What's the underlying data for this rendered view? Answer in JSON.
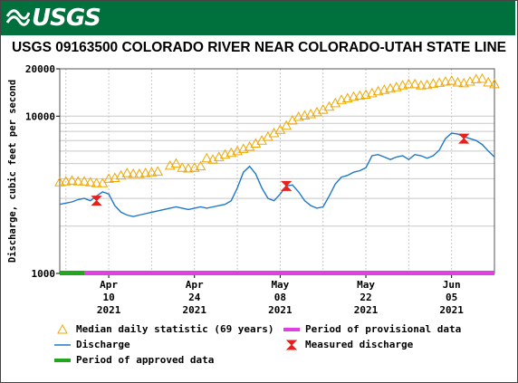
{
  "header": {
    "logo_text": "USGS",
    "brand_color": "#00703c"
  },
  "chart_data": {
    "type": "line",
    "title": "USGS 09163500 COLORADO RIVER NEAR COLORADO-UTAH STATE LINE",
    "ylabel": "Discharge, cubic feet per second",
    "yscale": "log",
    "ylim": [
      1000,
      20000
    ],
    "y_ticks": [
      {
        "value": 1000,
        "label": "1000"
      },
      {
        "value": 10000,
        "label": "10000"
      },
      {
        "value": 20000,
        "label": "20000"
      }
    ],
    "xlim": [
      "2021-04-02",
      "2021-06-12"
    ],
    "x_ticks": [
      {
        "date": "2021-04-10",
        "line1": "Apr",
        "line2": "10",
        "line3": "2021"
      },
      {
        "date": "2021-04-24",
        "line1": "Apr",
        "line2": "24",
        "line3": "2021"
      },
      {
        "date": "2021-05-08",
        "line1": "May",
        "line2": "08",
        "line3": "2021"
      },
      {
        "date": "2021-05-22",
        "line1": "May",
        "line2": "22",
        "line3": "2021"
      },
      {
        "date": "2021-06-05",
        "line1": "Jun",
        "line2": "05",
        "line3": "2021"
      }
    ],
    "grid": true,
    "legend_position": "bottom",
    "series": [
      {
        "name": "Median daily statistic (69 years)",
        "kind": "triangle-markers",
        "color": "#f0a800",
        "points": [
          {
            "x": "2021-04-02",
            "y": 3800
          },
          {
            "x": "2021-04-03",
            "y": 3850
          },
          {
            "x": "2021-04-04",
            "y": 3900
          },
          {
            "x": "2021-04-05",
            "y": 3850
          },
          {
            "x": "2021-04-06",
            "y": 3850
          },
          {
            "x": "2021-04-07",
            "y": 3800
          },
          {
            "x": "2021-04-08",
            "y": 3750
          },
          {
            "x": "2021-04-09",
            "y": 3750
          },
          {
            "x": "2021-04-10",
            "y": 4000
          },
          {
            "x": "2021-04-11",
            "y": 4050
          },
          {
            "x": "2021-04-12",
            "y": 4200
          },
          {
            "x": "2021-04-13",
            "y": 4350
          },
          {
            "x": "2021-04-14",
            "y": 4300
          },
          {
            "x": "2021-04-15",
            "y": 4300
          },
          {
            "x": "2021-04-16",
            "y": 4350
          },
          {
            "x": "2021-04-17",
            "y": 4400
          },
          {
            "x": "2021-04-18",
            "y": 4450
          },
          {
            "x": "2021-04-20",
            "y": 4850
          },
          {
            "x": "2021-04-21",
            "y": 5000
          },
          {
            "x": "2021-04-22",
            "y": 4700
          },
          {
            "x": "2021-04-23",
            "y": 4650
          },
          {
            "x": "2021-04-24",
            "y": 4700
          },
          {
            "x": "2021-04-25",
            "y": 4800
          },
          {
            "x": "2021-04-26",
            "y": 5400
          },
          {
            "x": "2021-04-27",
            "y": 5300
          },
          {
            "x": "2021-04-28",
            "y": 5500
          },
          {
            "x": "2021-04-29",
            "y": 5700
          },
          {
            "x": "2021-04-30",
            "y": 5850
          },
          {
            "x": "2021-05-01",
            "y": 6000
          },
          {
            "x": "2021-05-02",
            "y": 6200
          },
          {
            "x": "2021-05-03",
            "y": 6400
          },
          {
            "x": "2021-05-04",
            "y": 6700
          },
          {
            "x": "2021-05-05",
            "y": 7000
          },
          {
            "x": "2021-05-06",
            "y": 7400
          },
          {
            "x": "2021-05-07",
            "y": 7800
          },
          {
            "x": "2021-05-08",
            "y": 8200
          },
          {
            "x": "2021-05-09",
            "y": 8700
          },
          {
            "x": "2021-05-10",
            "y": 9400
          },
          {
            "x": "2021-05-11",
            "y": 9900
          },
          {
            "x": "2021-05-12",
            "y": 10100
          },
          {
            "x": "2021-05-13",
            "y": 10300
          },
          {
            "x": "2021-05-14",
            "y": 10600
          },
          {
            "x": "2021-05-15",
            "y": 11000
          },
          {
            "x": "2021-05-16",
            "y": 11500
          },
          {
            "x": "2021-05-17",
            "y": 12100
          },
          {
            "x": "2021-05-18",
            "y": 12700
          },
          {
            "x": "2021-05-19",
            "y": 13000
          },
          {
            "x": "2021-05-20",
            "y": 13300
          },
          {
            "x": "2021-05-21",
            "y": 13500
          },
          {
            "x": "2021-05-22",
            "y": 13700
          },
          {
            "x": "2021-05-23",
            "y": 14000
          },
          {
            "x": "2021-05-24",
            "y": 14400
          },
          {
            "x": "2021-05-25",
            "y": 14700
          },
          {
            "x": "2021-05-26",
            "y": 15000
          },
          {
            "x": "2021-05-27",
            "y": 15300
          },
          {
            "x": "2021-05-28",
            "y": 15700
          },
          {
            "x": "2021-05-29",
            "y": 16000
          },
          {
            "x": "2021-05-30",
            "y": 16000
          },
          {
            "x": "2021-05-31",
            "y": 15700
          },
          {
            "x": "2021-06-01",
            "y": 15800
          },
          {
            "x": "2021-06-02",
            "y": 16100
          },
          {
            "x": "2021-06-03",
            "y": 16300
          },
          {
            "x": "2021-06-04",
            "y": 16600
          },
          {
            "x": "2021-06-05",
            "y": 16800
          },
          {
            "x": "2021-06-06",
            "y": 16400
          },
          {
            "x": "2021-06-07",
            "y": 16200
          },
          {
            "x": "2021-06-08",
            "y": 16600
          },
          {
            "x": "2021-06-09",
            "y": 17200
          },
          {
            "x": "2021-06-10",
            "y": 17300
          },
          {
            "x": "2021-06-11",
            "y": 16400
          },
          {
            "x": "2021-06-12",
            "y": 16000
          }
        ]
      },
      {
        "name": "Discharge",
        "kind": "line",
        "color": "#1f78c8",
        "points": [
          {
            "x": "2021-04-02",
            "y": 2750
          },
          {
            "x": "2021-04-03",
            "y": 2800
          },
          {
            "x": "2021-04-04",
            "y": 2850
          },
          {
            "x": "2021-04-05",
            "y": 2950
          },
          {
            "x": "2021-04-06",
            "y": 3000
          },
          {
            "x": "2021-04-07",
            "y": 2900
          },
          {
            "x": "2021-04-08",
            "y": 3100
          },
          {
            "x": "2021-04-09",
            "y": 3300
          },
          {
            "x": "2021-04-10",
            "y": 3200
          },
          {
            "x": "2021-04-11",
            "y": 2700
          },
          {
            "x": "2021-04-12",
            "y": 2450
          },
          {
            "x": "2021-04-13",
            "y": 2350
          },
          {
            "x": "2021-04-14",
            "y": 2300
          },
          {
            "x": "2021-04-15",
            "y": 2350
          },
          {
            "x": "2021-04-16",
            "y": 2400
          },
          {
            "x": "2021-04-17",
            "y": 2450
          },
          {
            "x": "2021-04-18",
            "y": 2500
          },
          {
            "x": "2021-04-19",
            "y": 2550
          },
          {
            "x": "2021-04-20",
            "y": 2600
          },
          {
            "x": "2021-04-21",
            "y": 2650
          },
          {
            "x": "2021-04-22",
            "y": 2600
          },
          {
            "x": "2021-04-23",
            "y": 2550
          },
          {
            "x": "2021-04-24",
            "y": 2600
          },
          {
            "x": "2021-04-25",
            "y": 2650
          },
          {
            "x": "2021-04-26",
            "y": 2600
          },
          {
            "x": "2021-04-27",
            "y": 2650
          },
          {
            "x": "2021-04-28",
            "y": 2700
          },
          {
            "x": "2021-04-29",
            "y": 2750
          },
          {
            "x": "2021-04-30",
            "y": 2900
          },
          {
            "x": "2021-05-01",
            "y": 3500
          },
          {
            "x": "2021-05-02",
            "y": 4400
          },
          {
            "x": "2021-05-03",
            "y": 4800
          },
          {
            "x": "2021-05-04",
            "y": 4300
          },
          {
            "x": "2021-05-05",
            "y": 3500
          },
          {
            "x": "2021-05-06",
            "y": 3000
          },
          {
            "x": "2021-05-07",
            "y": 2900
          },
          {
            "x": "2021-05-08",
            "y": 3200
          },
          {
            "x": "2021-05-09",
            "y": 3600
          },
          {
            "x": "2021-05-10",
            "y": 3650
          },
          {
            "x": "2021-05-11",
            "y": 3300
          },
          {
            "x": "2021-05-12",
            "y": 2900
          },
          {
            "x": "2021-05-13",
            "y": 2700
          },
          {
            "x": "2021-05-14",
            "y": 2600
          },
          {
            "x": "2021-05-15",
            "y": 2650
          },
          {
            "x": "2021-05-16",
            "y": 3100
          },
          {
            "x": "2021-05-17",
            "y": 3700
          },
          {
            "x": "2021-05-18",
            "y": 4100
          },
          {
            "x": "2021-05-19",
            "y": 4200
          },
          {
            "x": "2021-05-20",
            "y": 4400
          },
          {
            "x": "2021-05-21",
            "y": 4500
          },
          {
            "x": "2021-05-22",
            "y": 4700
          },
          {
            "x": "2021-05-23",
            "y": 5600
          },
          {
            "x": "2021-05-24",
            "y": 5700
          },
          {
            "x": "2021-05-25",
            "y": 5500
          },
          {
            "x": "2021-05-26",
            "y": 5300
          },
          {
            "x": "2021-05-27",
            "y": 5500
          },
          {
            "x": "2021-05-28",
            "y": 5600
          },
          {
            "x": "2021-05-29",
            "y": 5300
          },
          {
            "x": "2021-05-30",
            "y": 5700
          },
          {
            "x": "2021-05-31",
            "y": 5600
          },
          {
            "x": "2021-06-01",
            "y": 5400
          },
          {
            "x": "2021-06-02",
            "y": 5600
          },
          {
            "x": "2021-06-03",
            "y": 6100
          },
          {
            "x": "2021-06-04",
            "y": 7200
          },
          {
            "x": "2021-06-05",
            "y": 7800
          },
          {
            "x": "2021-06-06",
            "y": 7700
          },
          {
            "x": "2021-06-07",
            "y": 7400
          },
          {
            "x": "2021-06-08",
            "y": 7200
          },
          {
            "x": "2021-06-09",
            "y": 7000
          },
          {
            "x": "2021-06-10",
            "y": 6600
          },
          {
            "x": "2021-06-11",
            "y": 6000
          },
          {
            "x": "2021-06-12",
            "y": 5500
          }
        ]
      },
      {
        "name": "Measured discharge",
        "kind": "bowtie-markers",
        "color": "#e8201c",
        "points": [
          {
            "x": "2021-04-08",
            "y": 2900
          },
          {
            "x": "2021-05-09",
            "y": 3600
          },
          {
            "x": "2021-06-07",
            "y": 7200
          }
        ]
      },
      {
        "name": "Period of approved data",
        "kind": "period-bar",
        "color": "#22a61e",
        "start": "2021-04-02",
        "end": "2021-04-06"
      },
      {
        "name": "Period of provisional data",
        "kind": "period-bar",
        "color": "#e040e0",
        "start": "2021-04-06",
        "end": "2021-06-12"
      }
    ]
  }
}
